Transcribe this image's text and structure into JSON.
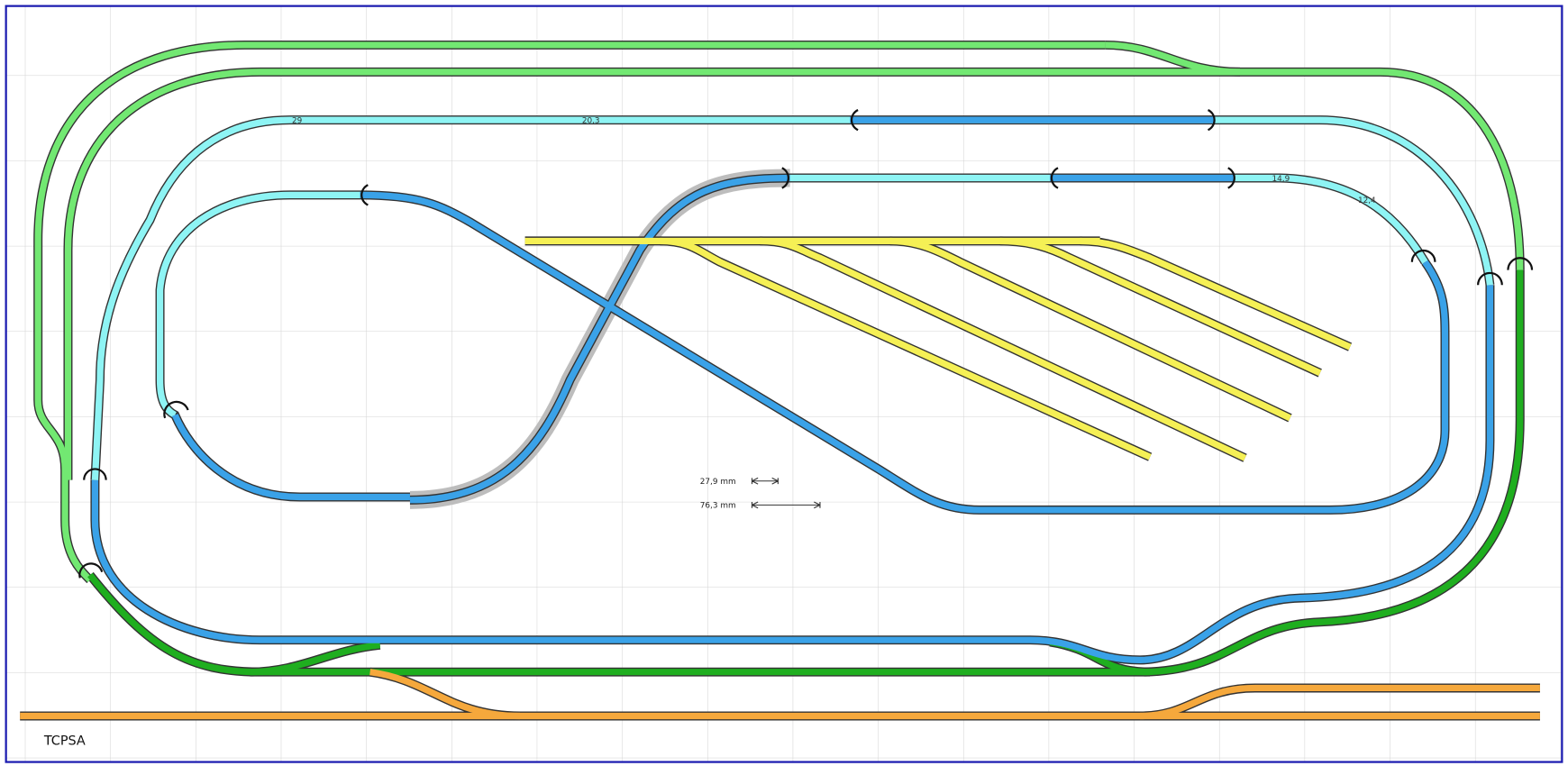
{
  "labels": {
    "measure_1": "27,9 mm",
    "measure_2": "76,3 mm",
    "layout_name": "TCPSA"
  },
  "track_labels": [
    "29",
    "20,3",
    "14,9",
    "12,4"
  ]
}
